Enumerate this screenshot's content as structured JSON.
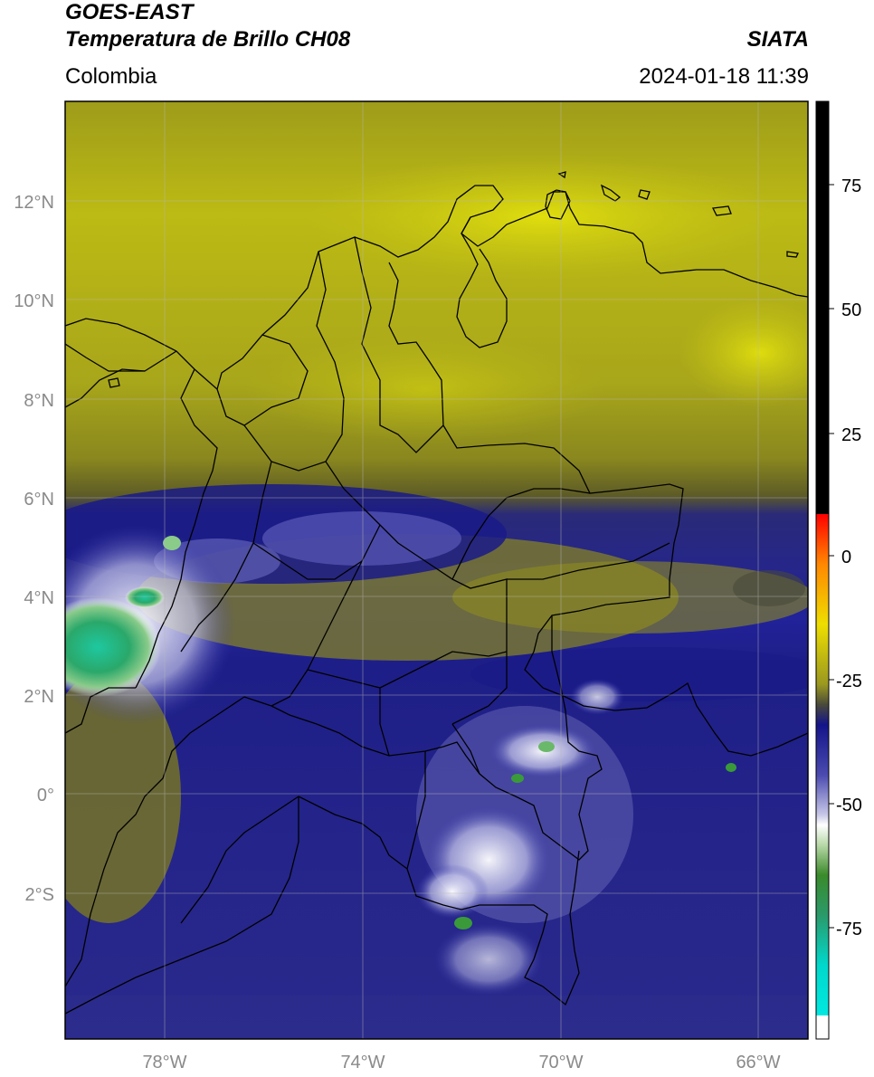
{
  "header": {
    "title_line1": "GOES-EAST",
    "title_line2": "Temperatura de Brillo CH08",
    "organization": "SIATA",
    "region": "Colombia",
    "datetime": "2024-01-18 11:39"
  },
  "map": {
    "lat_ticks": [
      "12°N",
      "10°N",
      "8°N",
      "6°N",
      "4°N",
      "2°N",
      "0°",
      "2°S"
    ],
    "lon_ticks": [
      "78°W",
      "74°W",
      "70°W",
      "66°W"
    ]
  },
  "colorbar": {
    "ticks": [
      "75",
      "50",
      "25",
      "0",
      "-25",
      "-50",
      "-75"
    ],
    "colors": {
      "very_cold": "#00d8cc",
      "cold": "#2e8b2e",
      "white": "#ffffff",
      "blue": "#1a1a88",
      "olive": "#6e6c22",
      "yellow": "#e8e60a",
      "orange": "#ff8800",
      "red": "#ff0000",
      "black": "#000000"
    }
  }
}
